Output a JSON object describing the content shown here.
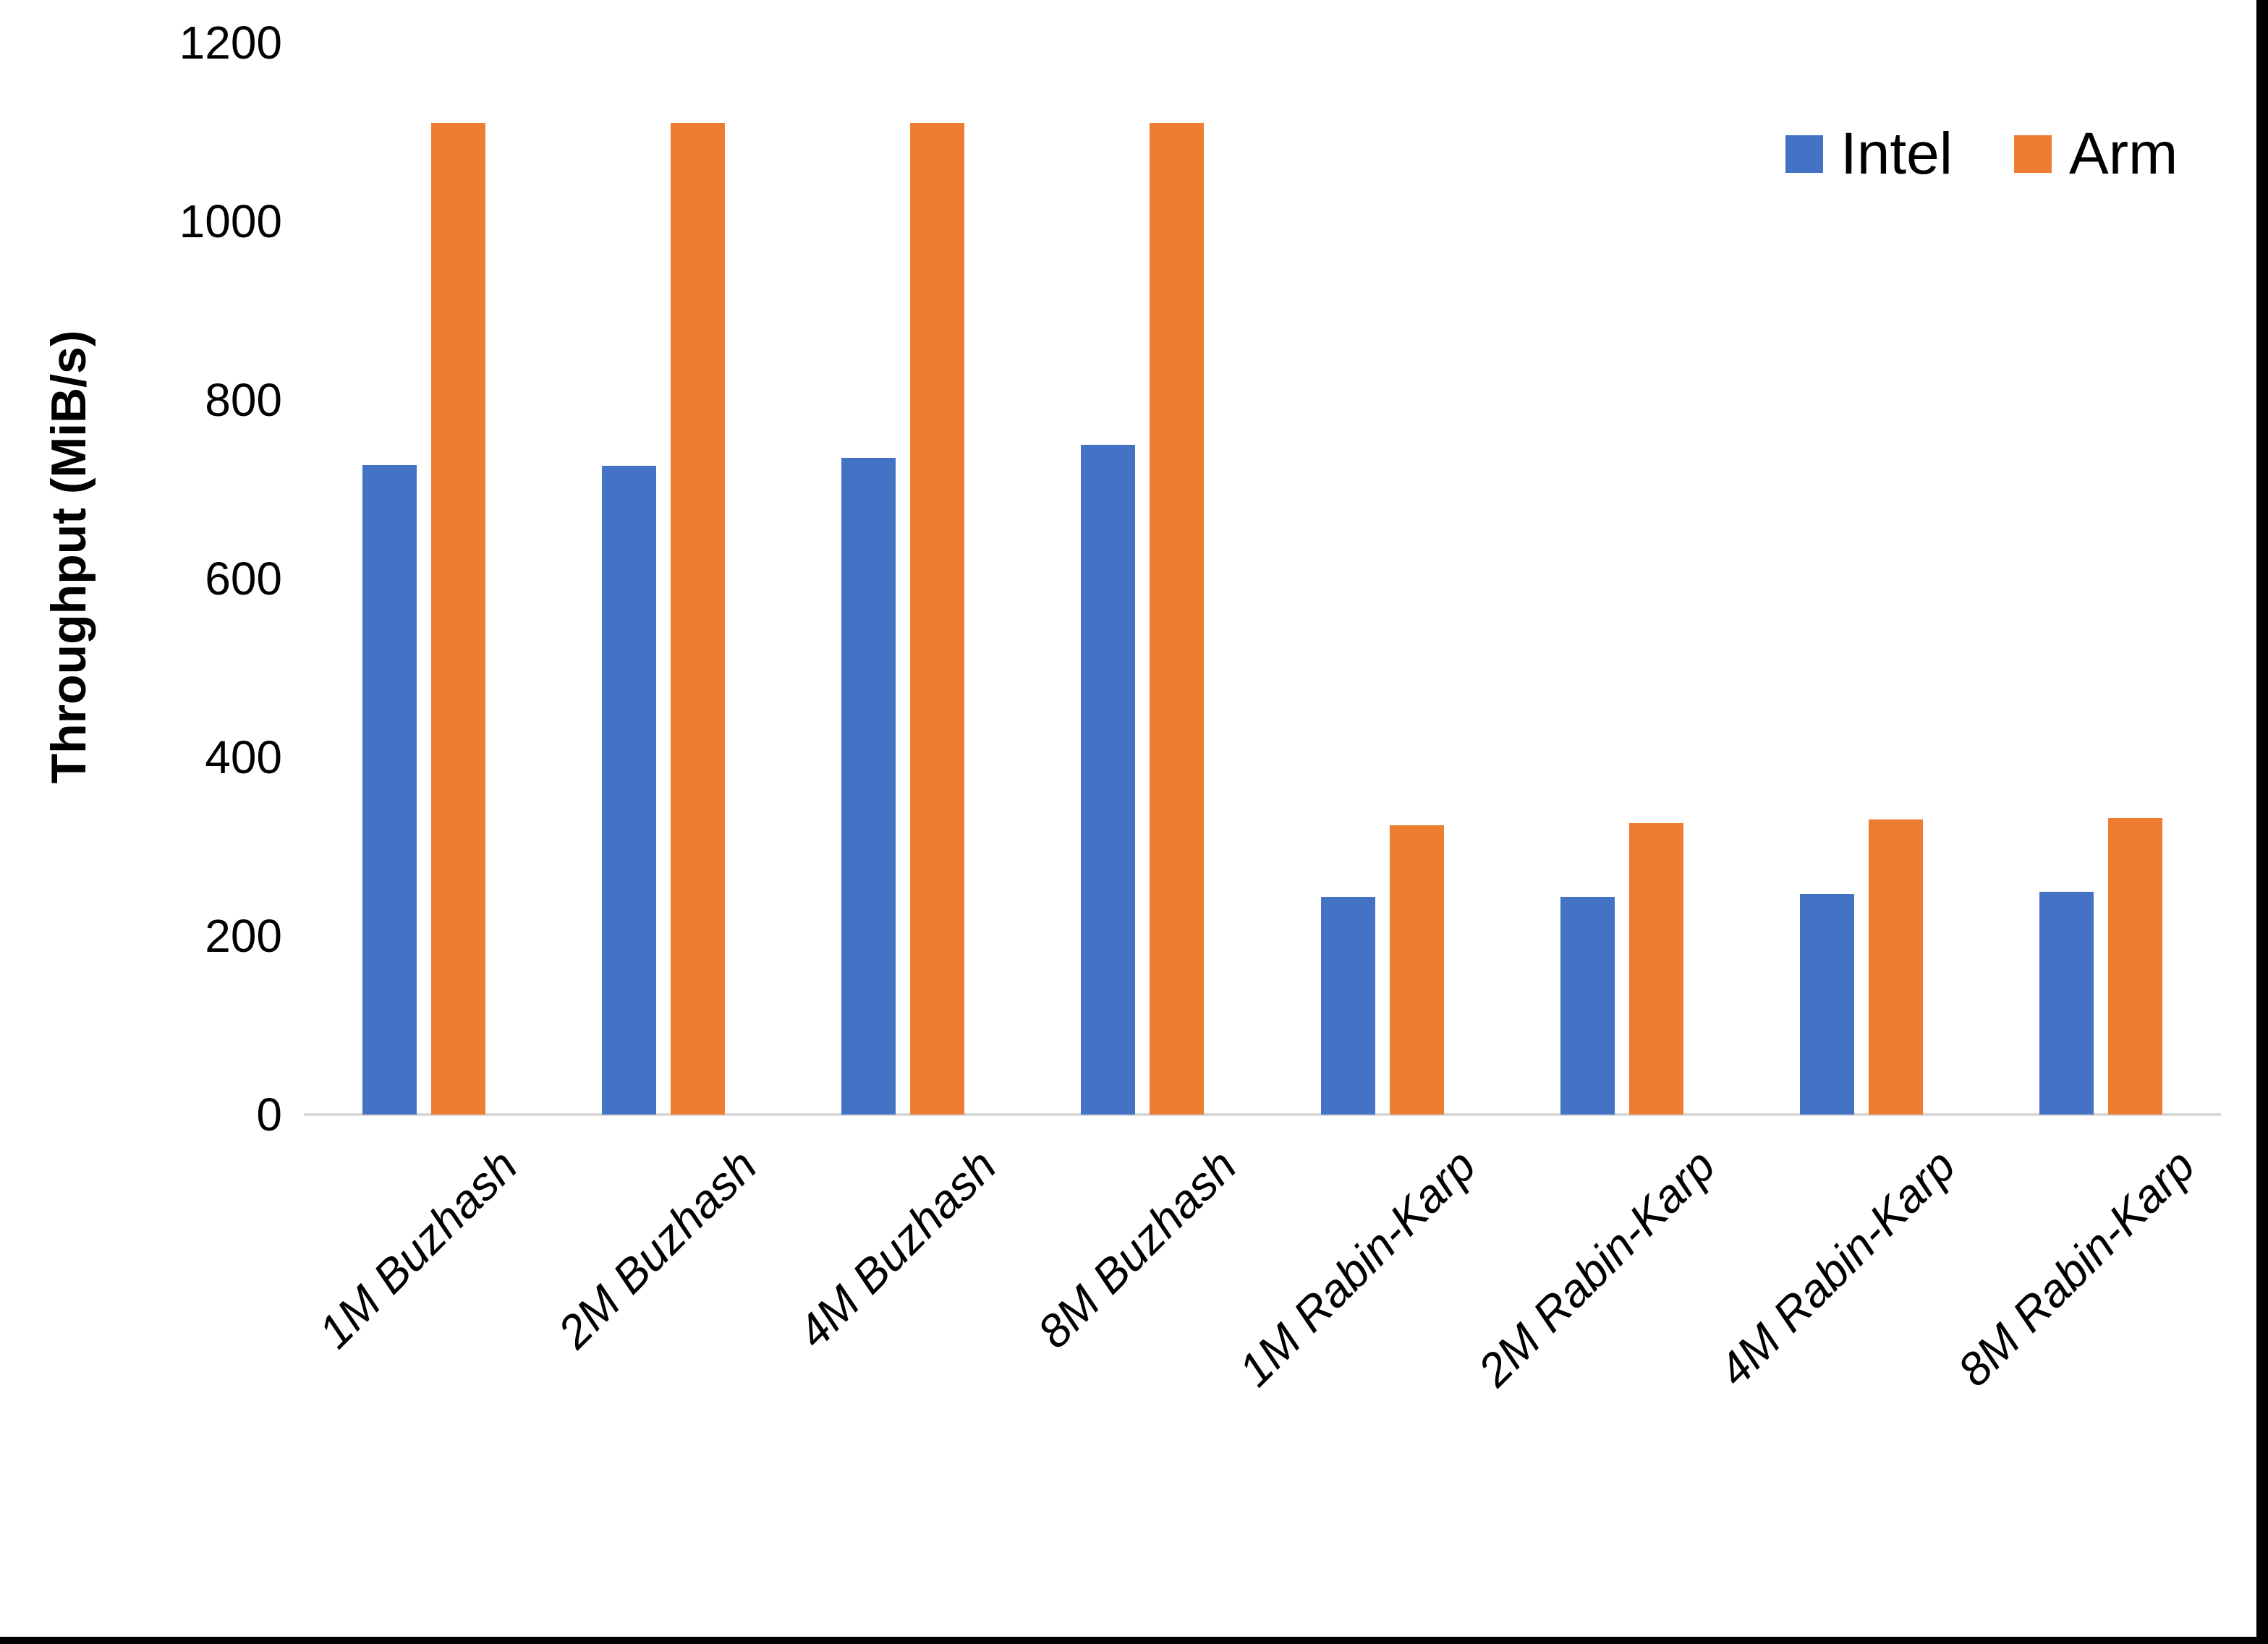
{
  "chart_data": {
    "type": "bar",
    "title": "",
    "ylabel": "Throughput (MiB/s)",
    "xlabel": "",
    "categories": [
      "1M Buzhash",
      "2M Buzhash",
      "4M Buzhash",
      "8M Buzhash",
      "1M Rabin-Karp",
      "2M Rabin-Karp",
      "4M Rabin-Karp",
      "8M Rabin-Karp"
    ],
    "series": [
      {
        "name": "Intel",
        "color": "#4472C4",
        "values": [
          727,
          726,
          735,
          750,
          244,
          244,
          247,
          249
        ]
      },
      {
        "name": "Arm",
        "color": "#ED7D31",
        "values": [
          1110,
          1110,
          1110,
          1110,
          324,
          326,
          330,
          332
        ]
      }
    ],
    "ylim": [
      0,
      1200
    ],
    "yticks": [
      0,
      200,
      400,
      600,
      800,
      1000,
      1200
    ],
    "grid": false,
    "legend_position": "top-right",
    "baseline_color": "#D9D9D9"
  }
}
